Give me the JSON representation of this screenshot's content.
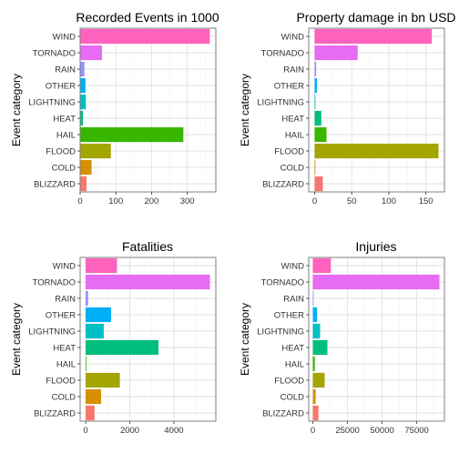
{
  "colors": {
    "BLIZZARD": "#F8766D",
    "COLD": "#D89000",
    "FLOOD": "#A3A500",
    "HAIL": "#39B600",
    "HEAT": "#00BF7D",
    "LIGHTNING": "#00BFC4",
    "OTHER": "#00B0F6",
    "RAIN": "#9590FF",
    "TORNADO": "#E76BF3",
    "WIND": "#FF62BC"
  },
  "chart_data": [
    {
      "type": "bar",
      "orientation": "horizontal",
      "title": "Recorded Events in 1000",
      "ylabel": "Event category",
      "xlabel": "",
      "categories": [
        "BLIZZARD",
        "COLD",
        "FLOOD",
        "HAIL",
        "HEAT",
        "LIGHTNING",
        "OTHER",
        "RAIN",
        "TORNADO",
        "WIND"
      ],
      "values": [
        18,
        32,
        86,
        289,
        8,
        16,
        15,
        12,
        61,
        363
      ],
      "xlim": [
        0,
        380
      ],
      "xticks": [
        0,
        100,
        200,
        300
      ],
      "grid": true,
      "legend": "none"
    },
    {
      "type": "bar",
      "orientation": "horizontal",
      "title": "Property damage in bn USD",
      "ylabel": "Event category",
      "xlabel": "",
      "categories": [
        "BLIZZARD",
        "COLD",
        "FLOOD",
        "HAIL",
        "HEAT",
        "LIGHTNING",
        "OTHER",
        "RAIN",
        "TORNADO",
        "WIND"
      ],
      "values": [
        11,
        0.5,
        167,
        16,
        9,
        1,
        3,
        2,
        58,
        158
      ],
      "xlim": [
        -8,
        175
      ],
      "xticks": [
        0,
        50,
        100,
        150
      ],
      "grid": true,
      "legend": "none"
    },
    {
      "type": "bar",
      "orientation": "horizontal",
      "title": "Fatalities",
      "ylabel": "Event category",
      "xlabel": "",
      "categories": [
        "BLIZZARD",
        "COLD",
        "FLOOD",
        "HAIL",
        "HEAT",
        "LIGHTNING",
        "OTHER",
        "RAIN",
        "TORNADO",
        "WIND"
      ],
      "values": [
        400,
        700,
        1550,
        15,
        3300,
        820,
        1150,
        110,
        5630,
        1420
      ],
      "xlim": [
        -250,
        5900
      ],
      "xticks": [
        0,
        2000,
        4000
      ],
      "grid": true,
      "legend": "none"
    },
    {
      "type": "bar",
      "orientation": "horizontal",
      "title": "Injuries",
      "ylabel": "Event category",
      "xlabel": "",
      "categories": [
        "BLIZZARD",
        "COLD",
        "FLOOD",
        "HAIL",
        "HEAT",
        "LIGHTNING",
        "OTHER",
        "RAIN",
        "TORNADO",
        "WIND"
      ],
      "values": [
        4000,
        2000,
        8500,
        1400,
        10500,
        5200,
        3000,
        300,
        91400,
        13000
      ],
      "xlim": [
        -3000,
        95000
      ],
      "xticks": [
        0,
        25000,
        50000,
        75000
      ],
      "grid": true,
      "legend": "none"
    }
  ]
}
